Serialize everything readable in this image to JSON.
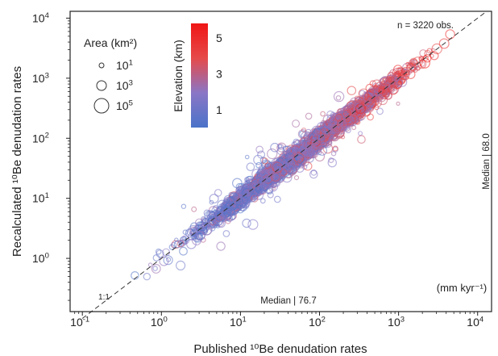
{
  "chart_data": {
    "type": "scatter",
    "scale": {
      "x": "log",
      "y": "log"
    },
    "xlim": [
      0.07,
      15000
    ],
    "ylim": [
      0.13,
      13000
    ],
    "xlabel": "Published ¹⁰Be denudation rates",
    "ylabel": "Recalculated ¹⁰Be denudation rates",
    "units": "(mm kyr⁻¹)",
    "x_ticks": [
      {
        "value": 0.1,
        "base": "10",
        "exp": "-1"
      },
      {
        "value": 1,
        "base": "10",
        "exp": "0"
      },
      {
        "value": 10,
        "base": "10",
        "exp": "1"
      },
      {
        "value": 100,
        "base": "10",
        "exp": "2"
      },
      {
        "value": 1000,
        "base": "10",
        "exp": "3"
      },
      {
        "value": 10000,
        "base": "10",
        "exp": "4"
      }
    ],
    "y_ticks": [
      {
        "value": 1,
        "base": "10",
        "exp": "0"
      },
      {
        "value": 10,
        "base": "10",
        "exp": "1"
      },
      {
        "value": 100,
        "base": "10",
        "exp": "2"
      },
      {
        "value": 1000,
        "base": "10",
        "exp": "3"
      },
      {
        "value": 10000,
        "base": "10",
        "exp": "4"
      }
    ],
    "n_label": "n = 3220 obs.",
    "n_obs": 3220,
    "one_to_one_label": "1:1",
    "median_x": {
      "text": "Median | 76.7",
      "value": 76.7
    },
    "median_y": {
      "text": "Median | 68.0",
      "value": 68.0
    },
    "size_legend": {
      "title": "Area (km²)",
      "items": [
        {
          "base": "10",
          "exp": "1",
          "area": 10
        },
        {
          "base": "10",
          "exp": "3",
          "area": 1000
        },
        {
          "base": "10",
          "exp": "5",
          "area": 100000
        }
      ]
    },
    "color_legend": {
      "title": "Elevation (km)",
      "range": [
        0,
        5.8
      ],
      "ticks": [
        {
          "value": 1,
          "label": "1"
        },
        {
          "value": 3,
          "label": "3"
        },
        {
          "value": 5,
          "label": "5"
        }
      ],
      "colors": [
        "#4a73c8",
        "#8a76c6",
        "#e64a4a",
        "#f01515"
      ]
    },
    "cloud_trend": [
      {
        "x": 0.2,
        "y": 0.3,
        "elev": 0.6
      },
      {
        "x": 1,
        "y": 1,
        "elev": 1.0
      },
      {
        "x": 10,
        "y": 10,
        "elev": 1.3
      },
      {
        "x": 76.7,
        "y": 68.0,
        "elev": 2.2
      },
      {
        "x": 1000,
        "y": 1200,
        "elev": 3.5
      },
      {
        "x": 5000,
        "y": 6000,
        "elev": 4.6
      }
    ]
  }
}
